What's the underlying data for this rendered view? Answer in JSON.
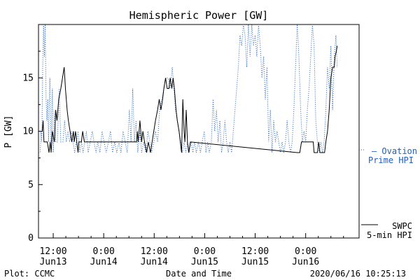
{
  "chart_data": {
    "type": "line",
    "title": "Hemispheric Power [GW]",
    "xlabel": "Date and Time",
    "ylabel": "P [GW]",
    "ylim": [
      0,
      20
    ],
    "yticks": [
      0,
      5,
      10,
      15
    ],
    "grid": false,
    "x_unit": "hours since Jun13 00:00",
    "xlim": [
      8.5,
      84.7
    ],
    "xticks": [
      {
        "x": 12,
        "line1": "12:00",
        "line2": "Jun13"
      },
      {
        "x": 24,
        "line1": "0:00",
        "line2": "Jun14"
      },
      {
        "x": 36,
        "line1": "12:00",
        "line2": "Jun14"
      },
      {
        "x": 48,
        "line1": "0:00",
        "line2": "Jun15"
      },
      {
        "x": 60,
        "line1": "12:00",
        "line2": "Jun15"
      },
      {
        "x": 72,
        "line1": "0:00",
        "line2": "Jun16"
      }
    ],
    "series": [
      {
        "name": "SWPC 5-min HPI",
        "label_line1": "SWPC",
        "label_line2": "5-min HPI",
        "color": "#000000",
        "style": "solid",
        "points": [
          [
            8.5,
            10
          ],
          [
            9.4,
            10
          ],
          [
            9.6,
            11
          ],
          [
            9.8,
            9
          ],
          [
            10.6,
            9
          ],
          [
            11.0,
            8
          ],
          [
            11.3,
            9
          ],
          [
            11.5,
            8
          ],
          [
            11.8,
            10
          ],
          [
            12.3,
            9
          ],
          [
            12.6,
            12
          ],
          [
            12.9,
            11
          ],
          [
            13.3,
            13
          ],
          [
            13.8,
            14
          ],
          [
            14.2,
            15
          ],
          [
            14.6,
            16
          ],
          [
            14.9,
            14
          ],
          [
            15.3,
            12
          ],
          [
            15.6,
            11
          ],
          [
            16.0,
            10
          ],
          [
            16.4,
            9
          ],
          [
            16.8,
            10
          ],
          [
            17.0,
            9
          ],
          [
            17.3,
            10
          ],
          [
            17.6,
            9
          ],
          [
            17.9,
            8
          ],
          [
            18.1,
            9
          ],
          [
            18.7,
            9
          ],
          [
            19.0,
            10
          ],
          [
            19.4,
            9
          ],
          [
            22,
            9
          ],
          [
            26,
            9
          ],
          [
            30,
            9
          ],
          [
            31.8,
            9
          ],
          [
            32.0,
            10
          ],
          [
            32.2,
            9
          ],
          [
            32.6,
            11
          ],
          [
            33.0,
            9
          ],
          [
            33.3,
            10
          ],
          [
            33.7,
            9
          ],
          [
            34.2,
            8
          ],
          [
            34.6,
            9
          ],
          [
            35.1,
            8
          ],
          [
            35.5,
            9
          ],
          [
            35.9,
            10
          ],
          [
            36.3,
            11
          ],
          [
            36.8,
            12
          ],
          [
            37.2,
            13
          ],
          [
            37.6,
            12
          ],
          [
            38.0,
            13
          ],
          [
            38.3,
            14
          ],
          [
            38.7,
            15
          ],
          [
            39.1,
            14
          ],
          [
            39.5,
            14
          ],
          [
            39.8,
            15
          ],
          [
            40.2,
            14
          ],
          [
            40.5,
            15
          ],
          [
            40.8,
            14
          ],
          [
            41.2,
            12
          ],
          [
            41.5,
            11
          ],
          [
            41.9,
            10
          ],
          [
            42.2,
            9
          ],
          [
            42.5,
            8
          ],
          [
            42.8,
            13
          ],
          [
            43.1,
            10
          ],
          [
            43.3,
            9
          ],
          [
            43.6,
            12
          ],
          [
            43.9,
            9
          ],
          [
            44.2,
            8
          ],
          [
            44.6,
            9
          ],
          [
            70,
            8
          ],
          [
            70.6,
            8
          ],
          [
            71.0,
            9
          ],
          [
            73.8,
            9
          ],
          [
            74.0,
            8
          ],
          [
            74.8,
            8
          ],
          [
            75.1,
            9
          ],
          [
            75.4,
            8
          ],
          [
            76.5,
            8
          ],
          [
            76.8,
            9
          ],
          [
            77.2,
            10
          ],
          [
            77.6,
            12
          ],
          [
            78.0,
            15
          ],
          [
            78.4,
            16
          ],
          [
            78.8,
            16
          ],
          [
            79.0,
            17
          ],
          [
            79.3,
            17.5
          ],
          [
            79.5,
            18
          ]
        ]
      },
      {
        "name": "Ovation Prime HPI",
        "label_line1": "— Ovation",
        "label_line2": "Prime HPI",
        "color": "#1f5fbf",
        "style": "dotted",
        "points": [
          [
            8.5,
            8
          ],
          [
            8.9,
            8
          ],
          [
            9.1,
            10
          ],
          [
            9.3,
            9
          ],
          [
            9.5,
            16
          ],
          [
            9.7,
            20
          ],
          [
            9.9,
            17
          ],
          [
            10.1,
            20
          ],
          [
            10.3,
            13
          ],
          [
            10.5,
            11
          ],
          [
            10.7,
            13
          ],
          [
            10.9,
            9
          ],
          [
            11.2,
            15
          ],
          [
            11.5,
            9
          ],
          [
            11.8,
            14
          ],
          [
            12.0,
            8
          ],
          [
            12.3,
            12
          ],
          [
            12.6,
            9
          ],
          [
            13.0,
            9
          ],
          [
            13.4,
            14
          ],
          [
            13.8,
            9
          ],
          [
            14.3,
            9
          ],
          [
            14.7,
            11
          ],
          [
            15.1,
            9
          ],
          [
            15.5,
            10
          ],
          [
            15.9,
            9
          ],
          [
            16.3,
            10
          ],
          [
            16.7,
            9
          ],
          [
            17.1,
            8
          ],
          [
            17.5,
            9
          ],
          [
            17.9,
            10
          ],
          [
            18.3,
            8
          ],
          [
            18.7,
            9
          ],
          [
            19.1,
            8
          ],
          [
            19.5,
            9
          ],
          [
            19.9,
            10
          ],
          [
            20.3,
            8
          ],
          [
            20.8,
            9
          ],
          [
            21.3,
            10
          ],
          [
            21.7,
            9
          ],
          [
            22.2,
            8
          ],
          [
            22.6,
            9
          ],
          [
            23.1,
            8
          ],
          [
            23.6,
            10
          ],
          [
            24.1,
            9
          ],
          [
            24.6,
            8
          ],
          [
            25.1,
            9
          ],
          [
            25.6,
            10
          ],
          [
            26.1,
            8
          ],
          [
            26.6,
            9
          ],
          [
            27.1,
            8
          ],
          [
            27.6,
            9
          ],
          [
            28.1,
            8
          ],
          [
            28.6,
            10
          ],
          [
            29.1,
            9
          ],
          [
            29.6,
            8
          ],
          [
            30.1,
            12
          ],
          [
            30.5,
            9
          ],
          [
            30.9,
            14
          ],
          [
            31.3,
            9
          ],
          [
            31.7,
            11
          ],
          [
            32.1,
            8
          ],
          [
            32.6,
            10
          ],
          [
            33.0,
            8
          ],
          [
            33.5,
            9
          ],
          [
            34.0,
            8
          ],
          [
            34.5,
            10
          ],
          [
            35.0,
            9
          ],
          [
            35.4,
            8
          ],
          [
            35.9,
            9
          ],
          [
            36.3,
            10
          ],
          [
            36.8,
            9
          ],
          [
            37.3,
            12
          ],
          [
            37.8,
            13
          ],
          [
            38.3,
            14
          ],
          [
            38.8,
            15
          ],
          [
            39.3,
            15
          ],
          [
            39.8,
            14
          ],
          [
            40.3,
            16
          ],
          [
            40.7,
            14
          ],
          [
            41.1,
            12
          ],
          [
            41.5,
            11
          ],
          [
            41.9,
            10
          ],
          [
            42.3,
            9
          ],
          [
            42.7,
            8
          ],
          [
            43.1,
            9
          ],
          [
            43.5,
            8
          ],
          [
            43.9,
            9
          ],
          [
            44.3,
            8
          ],
          [
            44.8,
            9
          ],
          [
            45.2,
            8
          ],
          [
            45.6,
            9
          ],
          [
            46.0,
            8
          ],
          [
            46.5,
            9
          ],
          [
            47.0,
            8
          ],
          [
            47.4,
            9
          ],
          [
            47.9,
            10
          ],
          [
            48.3,
            8
          ],
          [
            48.7,
            9
          ],
          [
            49.1,
            8
          ],
          [
            49.6,
            9
          ],
          [
            50.0,
            13
          ],
          [
            50.4,
            10
          ],
          [
            50.8,
            12
          ],
          [
            51.2,
            9
          ],
          [
            51.6,
            11
          ],
          [
            52.0,
            8
          ],
          [
            52.4,
            9
          ],
          [
            52.8,
            11
          ],
          [
            53.2,
            9
          ],
          [
            53.6,
            8
          ],
          [
            54.0,
            9
          ],
          [
            54.4,
            8
          ],
          [
            54.8,
            10
          ],
          [
            55.2,
            12
          ],
          [
            55.6,
            14
          ],
          [
            56.0,
            16
          ],
          [
            56.4,
            19
          ],
          [
            56.8,
            18
          ],
          [
            57.2,
            20
          ],
          [
            57.6,
            19
          ],
          [
            58.0,
            16
          ],
          [
            58.4,
            20
          ],
          [
            58.8,
            17
          ],
          [
            59.2,
            20
          ],
          [
            59.6,
            18
          ],
          [
            60.0,
            19
          ],
          [
            60.4,
            17
          ],
          [
            60.8,
            20
          ],
          [
            61.2,
            18
          ],
          [
            61.6,
            15
          ],
          [
            62.0,
            17
          ],
          [
            62.4,
            13
          ],
          [
            62.8,
            16
          ],
          [
            63.2,
            9
          ],
          [
            63.6,
            12
          ],
          [
            64.0,
            8
          ],
          [
            64.4,
            11
          ],
          [
            64.8,
            9
          ],
          [
            65.2,
            10
          ],
          [
            65.6,
            9
          ],
          [
            66.0,
            8
          ],
          [
            66.4,
            9
          ],
          [
            66.8,
            8
          ],
          [
            67.2,
            9
          ],
          [
            67.6,
            11
          ],
          [
            68.0,
            9
          ],
          [
            68.4,
            8
          ],
          [
            68.8,
            9
          ],
          [
            69.2,
            12
          ],
          [
            69.6,
            16
          ],
          [
            70.0,
            20
          ],
          [
            70.4,
            17
          ],
          [
            70.8,
            12
          ],
          [
            71.2,
            9
          ],
          [
            71.6,
            10
          ],
          [
            72.0,
            9
          ],
          [
            72.4,
            12
          ],
          [
            72.8,
            14
          ],
          [
            73.2,
            17
          ],
          [
            73.6,
            20
          ],
          [
            74.0,
            18
          ],
          [
            74.4,
            11
          ],
          [
            74.8,
            9
          ],
          [
            75.2,
            8
          ],
          [
            75.6,
            9
          ],
          [
            76.0,
            8
          ],
          [
            76.4,
            9
          ],
          [
            76.8,
            12
          ],
          [
            77.2,
            16
          ],
          [
            77.6,
            14
          ],
          [
            78.0,
            18
          ],
          [
            78.4,
            12
          ],
          [
            78.8,
            17
          ],
          [
            79.2,
            19
          ],
          [
            79.5,
            16
          ]
        ]
      }
    ]
  },
  "footer": {
    "left": "Plot: CCMC",
    "right": "2020/06/16 10:25:13"
  }
}
